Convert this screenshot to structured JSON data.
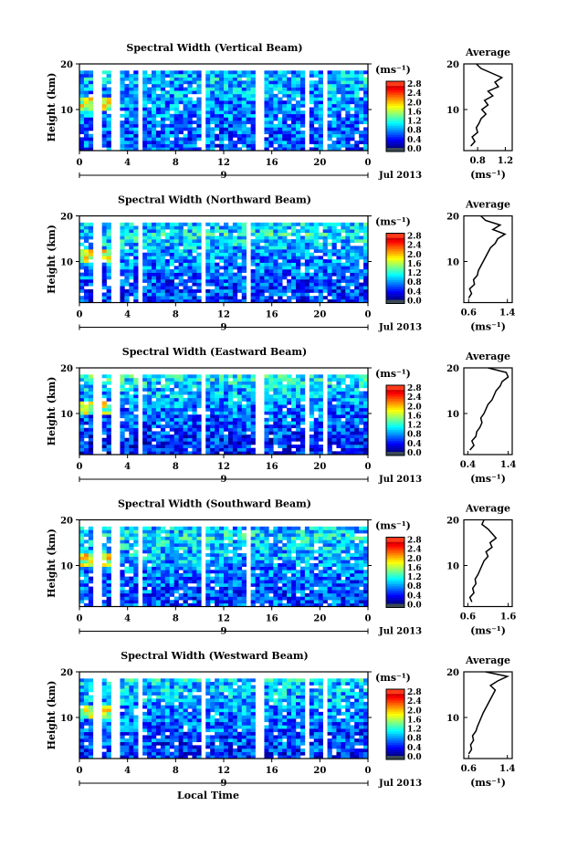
{
  "figure": {
    "xlabel": "Local Time",
    "colors": {
      "data_gap": "#ffffff",
      "axis": "#000000",
      "avg_line": "#000000",
      "overflow": "#ff3b1a",
      "underflow": "#3a4a55"
    }
  },
  "common_axes": {
    "ylabel": "Height (km)",
    "y_ticks": [
      "20",
      "10"
    ],
    "ylim": [
      1,
      20
    ],
    "x_ticks": [
      "0",
      "4",
      "8",
      "12",
      "16",
      "20",
      "0"
    ],
    "xlim_hours": [
      0,
      24
    ],
    "date_label": "9",
    "month_label": "Jul 2013",
    "colorbar_unit": "(ms⁻¹)",
    "colorbar_ticks": [
      "2.8",
      "2.4",
      "2.0",
      "1.6",
      "1.2",
      "0.8",
      "0.4",
      "0.0"
    ],
    "colorbar_range": [
      0,
      3.0
    ],
    "avg_title": "Average",
    "avg_xlabel": "(ms⁻¹)",
    "avg_y_ticks": [
      "20",
      "10"
    ]
  },
  "chart_data": [
    {
      "type": "heatmap",
      "panel": "vertical",
      "title": "Spectral Width (Vertical Beam)",
      "x_range_hours": [
        0,
        24
      ],
      "y_range_km": [
        1,
        20
      ],
      "color_range": [
        0.0,
        3.0
      ],
      "color_unit": "ms⁻¹",
      "data_gap_hours": [
        [
          1.2,
          1.7
        ],
        [
          2.8,
          3.3
        ],
        [
          4.8,
          5.4
        ],
        [
          10.0,
          10.6
        ],
        [
          14.6,
          15.2
        ],
        [
          18.6,
          19.1
        ],
        [
          20.2,
          20.6
        ]
      ],
      "average_profile": {
        "xlabel": "(ms⁻¹)",
        "x_ticks": [
          "0.8",
          "1.2"
        ],
        "xlim": [
          0.6,
          1.3
        ],
        "height_km": [
          2,
          3,
          4,
          5,
          6,
          7,
          8,
          9,
          10,
          11,
          12,
          13,
          14,
          15,
          16,
          17,
          18,
          19,
          20
        ],
        "value": [
          0.7,
          0.76,
          0.72,
          0.8,
          0.78,
          0.82,
          0.85,
          0.92,
          0.86,
          0.95,
          0.9,
          1.02,
          0.95,
          1.1,
          1.05,
          1.15,
          1.0,
          0.85,
          0.78
        ]
      }
    },
    {
      "type": "heatmap",
      "panel": "northward",
      "title": "Spectral Width (Northward Beam)",
      "x_range_hours": [
        0,
        24
      ],
      "y_range_km": [
        1,
        20
      ],
      "color_range": [
        0.0,
        3.0
      ],
      "color_unit": "ms⁻¹",
      "data_gap_hours": [
        [
          1.2,
          1.7
        ],
        [
          2.8,
          3.3
        ],
        [
          4.8,
          5.4
        ],
        [
          10.0,
          10.6
        ],
        [
          13.8,
          14.2
        ]
      ],
      "average_profile": {
        "xlabel": "(ms⁻¹)",
        "x_ticks": [
          "0.6",
          "1.4"
        ],
        "xlim": [
          0.5,
          1.5
        ],
        "height_km": [
          2,
          3,
          4,
          5,
          6,
          7,
          8,
          9,
          10,
          11,
          12,
          13,
          14,
          15,
          16,
          17,
          18,
          19,
          20
        ],
        "value": [
          0.6,
          0.66,
          0.62,
          0.72,
          0.7,
          0.78,
          0.8,
          0.85,
          0.9,
          0.95,
          1.0,
          1.05,
          1.15,
          1.2,
          1.35,
          1.1,
          1.25,
          0.95,
          0.85
        ]
      }
    },
    {
      "type": "heatmap",
      "panel": "eastward",
      "title": "Spectral Width (Eastward Beam)",
      "x_range_hours": [
        0,
        24
      ],
      "y_range_km": [
        1,
        20
      ],
      "color_range": [
        0.0,
        3.0
      ],
      "color_unit": "ms⁻¹",
      "data_gap_hours": [
        [
          1.2,
          1.7
        ],
        [
          2.8,
          3.3
        ],
        [
          4.8,
          5.4
        ],
        [
          10.0,
          10.6
        ],
        [
          14.6,
          15.2
        ],
        [
          18.6,
          19.1
        ],
        [
          20.2,
          20.6
        ]
      ],
      "average_profile": {
        "xlabel": "(ms⁻¹)",
        "x_ticks": [
          "0.4",
          "1.4"
        ],
        "xlim": [
          0.3,
          1.5
        ],
        "height_km": [
          2,
          3,
          4,
          5,
          6,
          7,
          8,
          9,
          10,
          11,
          12,
          13,
          14,
          15,
          16,
          17,
          18,
          19,
          20
        ],
        "value": [
          0.45,
          0.55,
          0.5,
          0.6,
          0.62,
          0.7,
          0.75,
          0.72,
          0.8,
          0.85,
          0.9,
          1.0,
          1.05,
          1.1,
          1.2,
          1.25,
          1.4,
          1.35,
          0.9
        ]
      }
    },
    {
      "type": "heatmap",
      "panel": "southward",
      "title": "Spectral Width (Southward Beam)",
      "x_range_hours": [
        0,
        24
      ],
      "y_range_km": [
        1,
        20
      ],
      "color_range": [
        0.0,
        3.0
      ],
      "color_unit": "ms⁻¹",
      "data_gap_hours": [
        [
          1.2,
          1.7
        ],
        [
          2.8,
          3.3
        ],
        [
          4.8,
          5.4
        ],
        [
          10.0,
          10.6
        ],
        [
          13.8,
          14.2
        ]
      ],
      "average_profile": {
        "xlabel": "(ms⁻¹)",
        "x_ticks": [
          "0.6",
          "1.6"
        ],
        "xlim": [
          0.5,
          1.7
        ],
        "height_km": [
          2,
          3,
          4,
          5,
          6,
          7,
          8,
          9,
          10,
          11,
          12,
          13,
          14,
          15,
          16,
          17,
          18,
          19,
          20
        ],
        "value": [
          0.7,
          0.65,
          0.75,
          0.72,
          0.8,
          0.78,
          0.85,
          0.9,
          0.95,
          1.0,
          1.1,
          1.05,
          1.2,
          1.15,
          1.3,
          1.2,
          1.1,
          0.95,
          1.0
        ]
      }
    },
    {
      "type": "heatmap",
      "panel": "westward",
      "title": "Spectral Width (Westward Beam)",
      "x_range_hours": [
        0,
        24
      ],
      "y_range_km": [
        1,
        20
      ],
      "color_range": [
        0.0,
        3.0
      ],
      "color_unit": "ms⁻¹",
      "data_gap_hours": [
        [
          1.2,
          1.7
        ],
        [
          2.8,
          3.3
        ],
        [
          4.8,
          5.4
        ],
        [
          10.0,
          10.6
        ],
        [
          14.6,
          15.2
        ],
        [
          18.6,
          19.1
        ],
        [
          20.2,
          20.6
        ]
      ],
      "average_profile": {
        "xlabel": "(ms⁻¹)",
        "x_ticks": [
          "0.6",
          "1.4"
        ],
        "xlim": [
          0.5,
          1.5
        ],
        "height_km": [
          2,
          3,
          4,
          5,
          6,
          7,
          8,
          9,
          10,
          11,
          12,
          13,
          14,
          15,
          16,
          17,
          18,
          19,
          20
        ],
        "value": [
          0.6,
          0.66,
          0.64,
          0.7,
          0.68,
          0.75,
          0.78,
          0.82,
          0.86,
          0.9,
          0.95,
          1.0,
          1.05,
          1.1,
          1.15,
          1.05,
          1.2,
          1.4,
          0.95
        ]
      }
    }
  ]
}
